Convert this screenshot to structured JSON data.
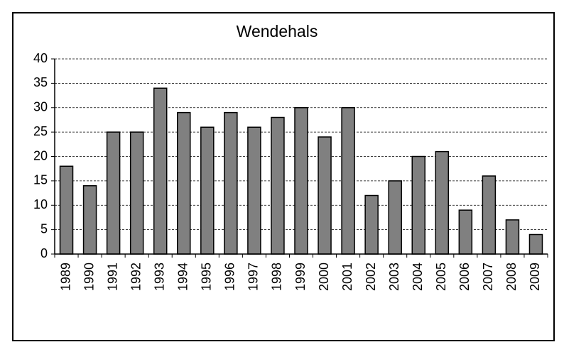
{
  "chart_data": {
    "type": "bar",
    "title": "Wendehals",
    "categories": [
      "1989",
      "1990",
      "1991",
      "1992",
      "1993",
      "1994",
      "1995",
      "1996",
      "1997",
      "1998",
      "1999",
      "2000",
      "2001",
      "2002",
      "2003",
      "2004",
      "2005",
      "2006",
      "2007",
      "2008",
      "2009"
    ],
    "values": [
      18,
      14,
      25,
      25,
      34,
      29,
      26,
      29,
      26,
      28,
      30,
      24,
      30,
      12,
      15,
      20,
      21,
      9,
      16,
      7,
      4
    ],
    "color": "#808080",
    "ylim": [
      0,
      40
    ],
    "yticks": [
      0,
      5,
      10,
      15,
      20,
      25,
      30,
      35,
      40
    ],
    "grid": true
  }
}
